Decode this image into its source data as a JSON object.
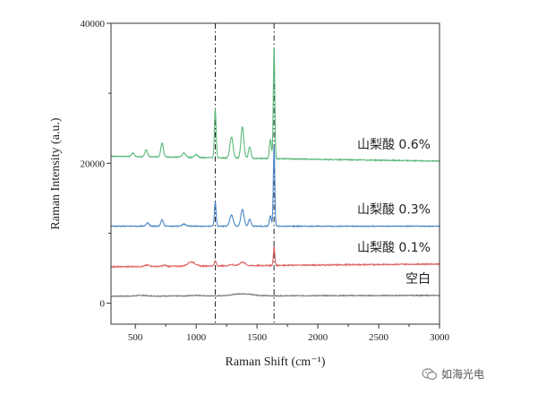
{
  "chart_data": {
    "type": "line",
    "title": "",
    "xlabel": "Raman Shift (cm⁻¹)",
    "ylabel": "Raman Intensity (a.u.)",
    "xlim": [
      300,
      3000
    ],
    "ylim": [
      -3000,
      40000
    ],
    "xticks": [
      500,
      1000,
      1500,
      2000,
      2500,
      3000
    ],
    "yticks": [
      0,
      20000,
      40000
    ],
    "reference_lines": [
      1157,
      1640
    ],
    "series": [
      {
        "name": "空白",
        "color": "#7a7a7a",
        "baseline": 1000,
        "slope": -110,
        "noise": 60,
        "peaks": [
          [
            1380,
            300,
            80
          ],
          [
            1000,
            100,
            40
          ],
          [
            550,
            100,
            40
          ]
        ]
      },
      {
        "name": "山梨酸 0.1%",
        "color": "#e06666",
        "baseline": 5200,
        "slope": -400,
        "noise": 80,
        "peaks": [
          [
            1157,
            700,
            8
          ],
          [
            1640,
            2700,
            6
          ],
          [
            960,
            600,
            30
          ],
          [
            1380,
            500,
            22
          ],
          [
            1290,
            200,
            15
          ],
          [
            600,
            200,
            18
          ],
          [
            740,
            150,
            15
          ]
        ]
      },
      {
        "name": "山梨酸 0.3%",
        "color": "#4a86c8",
        "baseline": 11000,
        "slope": 0,
        "noise": 60,
        "peaks": [
          [
            1157,
            3500,
            7
          ],
          [
            1640,
            11500,
            6
          ],
          [
            1290,
            1600,
            14
          ],
          [
            1380,
            2400,
            13
          ],
          [
            1440,
            1000,
            10
          ],
          [
            1610,
            1500,
            8
          ],
          [
            600,
            500,
            12
          ],
          [
            720,
            900,
            11
          ],
          [
            900,
            300,
            15
          ]
        ]
      },
      {
        "name": "山梨酸 0.6%",
        "color": "#5cb87a",
        "baseline": 21000,
        "slope": 700,
        "noise": 70,
        "peaks": [
          [
            1157,
            7000,
            7
          ],
          [
            1640,
            16000,
            6
          ],
          [
            1290,
            3000,
            13
          ],
          [
            1380,
            4500,
            12
          ],
          [
            1440,
            1600,
            10
          ],
          [
            1610,
            2800,
            8
          ],
          [
            480,
            500,
            12
          ],
          [
            590,
            1000,
            11
          ],
          [
            720,
            2000,
            11
          ],
          [
            900,
            600,
            15
          ],
          [
            1000,
            400,
            15
          ]
        ]
      }
    ]
  },
  "watermark": {
    "icon": "wechat-icon",
    "text": "如海光电"
  }
}
